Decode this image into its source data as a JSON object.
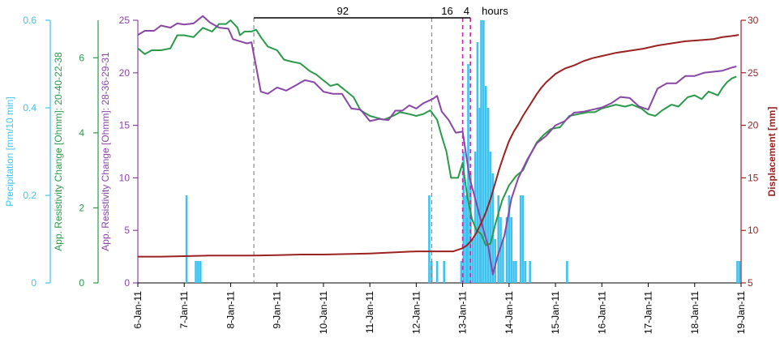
{
  "chart_data": {
    "type": "line",
    "x_categories": [
      "6-Jan-11",
      "7-Jan-11",
      "8-Jan-11",
      "9-Jan-11",
      "10-Jan-11",
      "11-Jan-11",
      "12-Jan-11",
      "13-Jan-11",
      "14-Jan-11",
      "15-Jan-11",
      "16-Jan-11",
      "17-Jan-11",
      "18-Jan-11",
      "19-Jan-11"
    ],
    "x_range": [
      6,
      19
    ],
    "axes": {
      "precip": {
        "label": "Precipitation [mm/10 min]",
        "color": "#3ec3f0",
        "range": [
          0,
          0.6
        ],
        "ticks": [
          "0",
          "0.2",
          "0.4",
          "0.6"
        ]
      },
      "green": {
        "label": "App. Resistivity Change [Ohmm]: 20-40-22-38",
        "color": "#2a9a4a",
        "range": [
          0,
          7
        ],
        "ticks": [
          "0",
          "2",
          "4",
          "6"
        ]
      },
      "purple": {
        "label": "App. Resistivity Change [Ohmm]: 28-36-29-31",
        "color": "#8a46a6",
        "range": [
          0,
          25
        ],
        "ticks": [
          "0",
          "5",
          "10",
          "15",
          "20",
          "25"
        ]
      },
      "disp": {
        "label": "Displacement [mm]",
        "color": "#9c2222",
        "range": [
          5,
          30
        ],
        "ticks": [
          "5",
          "10",
          "15",
          "20",
          "25",
          "30"
        ]
      }
    },
    "annotations": {
      "hours_label": "hours",
      "intervals": [
        {
          "label": "92",
          "x_start": 8.5,
          "x_end": 12.333
        },
        {
          "label": "16",
          "x_start": 12.333,
          "x_end": 13.0
        },
        {
          "label": "4",
          "x_start": 13.0,
          "x_end": 13.167
        }
      ],
      "vlines_gray": [
        8.5,
        12.333
      ],
      "vlines_magenta": [
        13.0,
        13.167
      ]
    },
    "series": [
      {
        "axis": "green",
        "type": "line",
        "points": [
          [
            6.0,
            6.25
          ],
          [
            6.15,
            6.1
          ],
          [
            6.3,
            6.2
          ],
          [
            6.5,
            6.2
          ],
          [
            6.7,
            6.25
          ],
          [
            6.85,
            6.6
          ],
          [
            7.0,
            6.6
          ],
          [
            7.2,
            6.55
          ],
          [
            7.4,
            6.8
          ],
          [
            7.5,
            6.75
          ],
          [
            7.6,
            6.7
          ],
          [
            7.75,
            6.9
          ],
          [
            7.9,
            6.9
          ],
          [
            8.0,
            7.0
          ],
          [
            8.15,
            6.8
          ],
          [
            8.2,
            6.6
          ],
          [
            8.3,
            6.7
          ],
          [
            8.45,
            6.7
          ],
          [
            8.55,
            6.75
          ],
          [
            8.65,
            6.55
          ],
          [
            8.8,
            6.3
          ],
          [
            9.0,
            6.2
          ],
          [
            9.15,
            5.95
          ],
          [
            9.3,
            5.9
          ],
          [
            9.5,
            5.85
          ],
          [
            9.7,
            5.65
          ],
          [
            9.85,
            5.55
          ],
          [
            10.0,
            5.4
          ],
          [
            10.15,
            5.25
          ],
          [
            10.3,
            5.3
          ],
          [
            10.5,
            5.1
          ],
          [
            10.65,
            4.95
          ],
          [
            10.8,
            4.6
          ],
          [
            11.0,
            4.45
          ],
          [
            11.15,
            4.4
          ],
          [
            11.3,
            4.35
          ],
          [
            11.5,
            4.45
          ],
          [
            11.65,
            4.55
          ],
          [
            11.85,
            4.5
          ],
          [
            12.0,
            4.45
          ],
          [
            12.15,
            4.5
          ],
          [
            12.3,
            4.6
          ],
          [
            12.45,
            4.35
          ],
          [
            12.55,
            3.9
          ],
          [
            12.65,
            3.5
          ],
          [
            12.75,
            2.8
          ],
          [
            12.9,
            2.8
          ],
          [
            13.0,
            3.2
          ],
          [
            13.1,
            2.3
          ],
          [
            13.2,
            1.7
          ],
          [
            13.3,
            1.4
          ],
          [
            13.4,
            1.3
          ],
          [
            13.5,
            1.0
          ],
          [
            13.6,
            1.05
          ],
          [
            13.7,
            1.55
          ],
          [
            13.85,
            2.2
          ],
          [
            14.0,
            2.6
          ],
          [
            14.15,
            2.85
          ],
          [
            14.3,
            3.0
          ],
          [
            14.45,
            3.4
          ],
          [
            14.6,
            3.75
          ],
          [
            14.75,
            3.95
          ],
          [
            14.9,
            4.1
          ],
          [
            15.1,
            4.15
          ],
          [
            15.3,
            4.45
          ],
          [
            15.5,
            4.5
          ],
          [
            15.7,
            4.55
          ],
          [
            15.85,
            4.55
          ],
          [
            16.0,
            4.65
          ],
          [
            16.15,
            4.7
          ],
          [
            16.3,
            4.75
          ],
          [
            16.5,
            4.7
          ],
          [
            16.65,
            4.75
          ],
          [
            16.85,
            4.65
          ],
          [
            17.0,
            4.5
          ],
          [
            17.15,
            4.45
          ],
          [
            17.3,
            4.6
          ],
          [
            17.5,
            4.75
          ],
          [
            17.65,
            4.7
          ],
          [
            17.85,
            4.95
          ],
          [
            18.0,
            5.0
          ],
          [
            18.15,
            4.9
          ],
          [
            18.3,
            5.1
          ],
          [
            18.5,
            5.0
          ],
          [
            18.6,
            5.2
          ],
          [
            18.7,
            5.35
          ],
          [
            18.8,
            5.45
          ],
          [
            18.9,
            5.5
          ]
        ]
      },
      {
        "axis": "purple",
        "type": "line",
        "points": [
          [
            6.0,
            23.6
          ],
          [
            6.15,
            24.0
          ],
          [
            6.35,
            24.0
          ],
          [
            6.5,
            24.5
          ],
          [
            6.7,
            24.3
          ],
          [
            6.85,
            24.7
          ],
          [
            7.0,
            24.6
          ],
          [
            7.2,
            24.7
          ],
          [
            7.4,
            25.4
          ],
          [
            7.55,
            24.8
          ],
          [
            7.75,
            24.3
          ],
          [
            7.95,
            24.2
          ],
          [
            8.05,
            23.2
          ],
          [
            8.2,
            23.0
          ],
          [
            8.35,
            22.8
          ],
          [
            8.45,
            22.9
          ],
          [
            8.65,
            18.2
          ],
          [
            8.8,
            18.0
          ],
          [
            9.0,
            18.6
          ],
          [
            9.2,
            18.3
          ],
          [
            9.4,
            18.8
          ],
          [
            9.6,
            19.3
          ],
          [
            9.8,
            19.1
          ],
          [
            10.0,
            18.2
          ],
          [
            10.2,
            18.0
          ],
          [
            10.4,
            18.0
          ],
          [
            10.6,
            16.6
          ],
          [
            10.8,
            16.5
          ],
          [
            11.0,
            15.4
          ],
          [
            11.2,
            15.6
          ],
          [
            11.4,
            15.5
          ],
          [
            11.55,
            16.4
          ],
          [
            11.7,
            16.4
          ],
          [
            11.85,
            16.9
          ],
          [
            12.0,
            16.6
          ],
          [
            12.15,
            17.1
          ],
          [
            12.35,
            17.5
          ],
          [
            12.45,
            17.8
          ],
          [
            12.55,
            16.3
          ],
          [
            12.7,
            15.5
          ],
          [
            12.85,
            14.3
          ],
          [
            13.0,
            14.4
          ],
          [
            13.15,
            10.0
          ],
          [
            13.3,
            7.5
          ],
          [
            13.45,
            5.0
          ],
          [
            13.55,
            3.5
          ],
          [
            13.65,
            0.8
          ],
          [
            13.75,
            2.5
          ],
          [
            13.9,
            4.5
          ],
          [
            14.05,
            8.0
          ],
          [
            14.2,
            10.0
          ],
          [
            14.4,
            11.8
          ],
          [
            14.6,
            13.3
          ],
          [
            14.8,
            14.0
          ],
          [
            15.0,
            15.0
          ],
          [
            15.2,
            15.4
          ],
          [
            15.4,
            16.2
          ],
          [
            15.6,
            16.3
          ],
          [
            15.8,
            16.5
          ],
          [
            16.0,
            16.7
          ],
          [
            16.2,
            17.1
          ],
          [
            16.4,
            17.7
          ],
          [
            16.6,
            17.6
          ],
          [
            16.8,
            16.8
          ],
          [
            17.0,
            16.5
          ],
          [
            17.2,
            18.5
          ],
          [
            17.4,
            19.0
          ],
          [
            17.6,
            19.0
          ],
          [
            17.8,
            19.7
          ],
          [
            18.0,
            19.7
          ],
          [
            18.2,
            20.0
          ],
          [
            18.4,
            20.1
          ],
          [
            18.6,
            20.2
          ],
          [
            18.8,
            20.5
          ],
          [
            18.9,
            20.6
          ]
        ]
      },
      {
        "axis": "disp",
        "type": "line",
        "points": [
          [
            6.0,
            7.5
          ],
          [
            6.5,
            7.5
          ],
          [
            7.0,
            7.55
          ],
          [
            7.5,
            7.6
          ],
          [
            8.0,
            7.6
          ],
          [
            8.5,
            7.6
          ],
          [
            9.0,
            7.65
          ],
          [
            9.5,
            7.7
          ],
          [
            10.0,
            7.7
          ],
          [
            10.5,
            7.75
          ],
          [
            11.0,
            7.8
          ],
          [
            11.5,
            7.9
          ],
          [
            12.0,
            8.0
          ],
          [
            12.5,
            8.0
          ],
          [
            12.8,
            8.0
          ],
          [
            13.0,
            8.3
          ],
          [
            13.1,
            8.6
          ],
          [
            13.2,
            9.1
          ],
          [
            13.3,
            9.8
          ],
          [
            13.4,
            10.7
          ],
          [
            13.5,
            11.7
          ],
          [
            13.6,
            13.0
          ],
          [
            13.7,
            14.5
          ],
          [
            13.8,
            16.0
          ],
          [
            13.9,
            17.3
          ],
          [
            14.0,
            18.5
          ],
          [
            14.1,
            19.4
          ],
          [
            14.2,
            20.1
          ],
          [
            14.3,
            20.9
          ],
          [
            14.4,
            21.6
          ],
          [
            14.5,
            22.3
          ],
          [
            14.6,
            23.0
          ],
          [
            14.7,
            23.6
          ],
          [
            14.8,
            24.1
          ],
          [
            14.9,
            24.5
          ],
          [
            15.0,
            24.9
          ],
          [
            15.2,
            25.4
          ],
          [
            15.4,
            25.7
          ],
          [
            15.6,
            26.1
          ],
          [
            15.8,
            26.4
          ],
          [
            16.0,
            26.6
          ],
          [
            16.3,
            26.9
          ],
          [
            16.6,
            27.1
          ],
          [
            16.9,
            27.3
          ],
          [
            17.2,
            27.6
          ],
          [
            17.5,
            27.8
          ],
          [
            17.8,
            28.0
          ],
          [
            18.1,
            28.1
          ],
          [
            18.4,
            28.2
          ],
          [
            18.6,
            28.4
          ],
          [
            18.8,
            28.5
          ],
          [
            18.95,
            28.6
          ]
        ]
      },
      {
        "axis": "precip",
        "type": "bar",
        "bars": [
          [
            7.05,
            0.2
          ],
          [
            7.25,
            0.05
          ],
          [
            7.3,
            0.05
          ],
          [
            7.35,
            0.05
          ],
          [
            12.28,
            0.2
          ],
          [
            12.33,
            0.05
          ],
          [
            12.45,
            0.05
          ],
          [
            12.6,
            0.05
          ],
          [
            12.97,
            0.05
          ],
          [
            13.02,
            0.3
          ],
          [
            13.07,
            0.2
          ],
          [
            13.1,
            0.15
          ],
          [
            13.12,
            0.5
          ],
          [
            13.17,
            0.25
          ],
          [
            13.22,
            0.1
          ],
          [
            13.27,
            0.3
          ],
          [
            13.32,
            0.55
          ],
          [
            13.37,
            0.4
          ],
          [
            13.4,
            0.6
          ],
          [
            13.45,
            0.6
          ],
          [
            13.5,
            0.45
          ],
          [
            13.55,
            0.4
          ],
          [
            13.6,
            0.3
          ],
          [
            13.65,
            0.25
          ],
          [
            13.7,
            0.1
          ],
          [
            13.77,
            0.2
          ],
          [
            13.82,
            0.15
          ],
          [
            13.87,
            0.1
          ],
          [
            13.95,
            0.15
          ],
          [
            14.0,
            0.2
          ],
          [
            14.05,
            0.15
          ],
          [
            14.1,
            0.05
          ],
          [
            14.15,
            0.05
          ],
          [
            14.25,
            0.2
          ],
          [
            14.3,
            0.2
          ],
          [
            14.35,
            0.05
          ],
          [
            14.45,
            0.05
          ],
          [
            15.25,
            0.05
          ],
          [
            18.92,
            0.05
          ],
          [
            18.97,
            0.05
          ]
        ]
      }
    ]
  }
}
